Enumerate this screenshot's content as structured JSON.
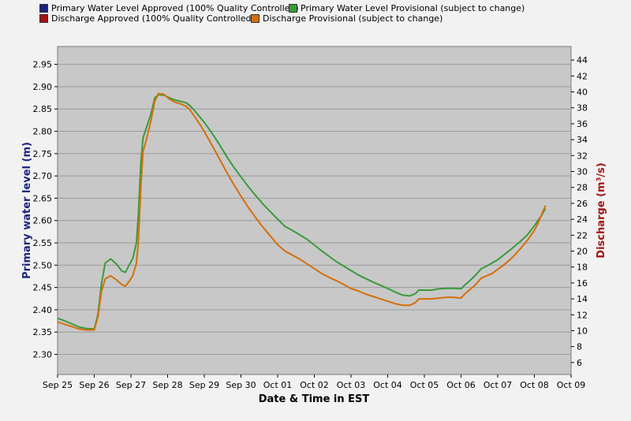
{
  "legend": [
    {
      "label": "Primary Water Level Approved (100% Quality Controlled)",
      "color": "#1a237e"
    },
    {
      "label": "Primary Water Level Provisional (subject to change)",
      "color": "#3a9a3a"
    },
    {
      "label": "Discharge Approved (100% Quality Controlled)",
      "color": "#a31515"
    },
    {
      "label": "Discharge Provisional (subject to change)",
      "color": "#d46f0a"
    }
  ],
  "chart_data": {
    "type": "line",
    "xlabel": "Date & Time in EST",
    "ylabel_left": "Primary water level (m)",
    "ylabel_right": "Discharge (m³/s)",
    "x_categories": [
      "Sep 25",
      "Sep 26",
      "Sep 27",
      "Sep 28",
      "Sep 29",
      "Sep 30",
      "Oct 01",
      "Oct 02",
      "Oct 03",
      "Oct 04",
      "Oct 05",
      "Oct 06",
      "Oct 07",
      "Oct 08",
      "Oct 09"
    ],
    "y_left": {
      "ticks": [
        "2.30",
        "2.35",
        "2.40",
        "2.45",
        "2.50",
        "2.55",
        "2.60",
        "2.65",
        "2.70",
        "2.75",
        "2.80",
        "2.85",
        "2.90",
        "2.95"
      ],
      "range": [
        2.255,
        2.99
      ]
    },
    "y_right": {
      "ticks": [
        "6",
        "8",
        "10",
        "12",
        "14",
        "16",
        "18",
        "20",
        "22",
        "24",
        "26",
        "28",
        "30",
        "32",
        "34",
        "36",
        "38",
        "40",
        "42",
        "44"
      ],
      "range": [
        4.5,
        45.7
      ]
    },
    "grid": true,
    "series": [
      {
        "name": "Primary Water Level Provisional (subject to change)",
        "axis": "left",
        "color": "#3a9a3a",
        "points": [
          [
            0.0,
            2.381
          ],
          [
            0.2,
            2.375
          ],
          [
            0.4,
            2.368
          ],
          [
            0.6,
            2.361
          ],
          [
            0.8,
            2.358
          ],
          [
            1.0,
            2.357
          ],
          [
            1.1,
            2.39
          ],
          [
            1.2,
            2.46
          ],
          [
            1.3,
            2.505
          ],
          [
            1.45,
            2.514
          ],
          [
            1.6,
            2.503
          ],
          [
            1.75,
            2.487
          ],
          [
            1.85,
            2.484
          ],
          [
            1.95,
            2.5
          ],
          [
            2.05,
            2.515
          ],
          [
            2.15,
            2.55
          ],
          [
            2.2,
            2.61
          ],
          [
            2.27,
            2.73
          ],
          [
            2.33,
            2.785
          ],
          [
            2.45,
            2.815
          ],
          [
            2.55,
            2.84
          ],
          [
            2.65,
            2.875
          ],
          [
            2.75,
            2.882
          ],
          [
            2.9,
            2.881
          ],
          [
            3.05,
            2.875
          ],
          [
            3.2,
            2.87
          ],
          [
            3.35,
            2.867
          ],
          [
            3.5,
            2.864
          ],
          [
            3.6,
            2.858
          ],
          [
            3.75,
            2.845
          ],
          [
            3.9,
            2.83
          ],
          [
            4.0,
            2.82
          ],
          [
            4.2,
            2.797
          ],
          [
            4.4,
            2.772
          ],
          [
            4.6,
            2.745
          ],
          [
            4.8,
            2.72
          ],
          [
            5.0,
            2.698
          ],
          [
            5.2,
            2.676
          ],
          [
            5.4,
            2.656
          ],
          [
            5.6,
            2.637
          ],
          [
            5.8,
            2.62
          ],
          [
            6.0,
            2.603
          ],
          [
            6.2,
            2.587
          ],
          [
            6.4,
            2.578
          ],
          [
            6.6,
            2.568
          ],
          [
            6.8,
            2.558
          ],
          [
            7.0,
            2.545
          ],
          [
            7.2,
            2.532
          ],
          [
            7.4,
            2.52
          ],
          [
            7.6,
            2.508
          ],
          [
            7.8,
            2.498
          ],
          [
            8.0,
            2.488
          ],
          [
            8.2,
            2.478
          ],
          [
            8.4,
            2.47
          ],
          [
            8.6,
            2.462
          ],
          [
            8.8,
            2.455
          ],
          [
            9.0,
            2.448
          ],
          [
            9.2,
            2.44
          ],
          [
            9.4,
            2.433
          ],
          [
            9.6,
            2.431
          ],
          [
            9.75,
            2.436
          ],
          [
            9.85,
            2.444
          ],
          [
            10.0,
            2.444
          ],
          [
            10.2,
            2.444
          ],
          [
            10.4,
            2.447
          ],
          [
            10.6,
            2.448
          ],
          [
            10.8,
            2.448
          ],
          [
            11.0,
            2.447
          ],
          [
            11.1,
            2.455
          ],
          [
            11.25,
            2.466
          ],
          [
            11.4,
            2.478
          ],
          [
            11.55,
            2.492
          ],
          [
            11.7,
            2.498
          ],
          [
            11.85,
            2.505
          ],
          [
            12.0,
            2.512
          ],
          [
            12.2,
            2.525
          ],
          [
            12.4,
            2.538
          ],
          [
            12.6,
            2.552
          ],
          [
            12.8,
            2.567
          ],
          [
            13.0,
            2.588
          ],
          [
            13.1,
            2.6
          ],
          [
            13.2,
            2.612
          ],
          [
            13.3,
            2.627
          ]
        ]
      },
      {
        "name": "Discharge Provisional (subject to change)",
        "axis": "right",
        "color": "#d46f0a",
        "points": [
          [
            0.0,
            11.1
          ],
          [
            0.2,
            10.8
          ],
          [
            0.4,
            10.5
          ],
          [
            0.6,
            10.2
          ],
          [
            0.8,
            10.1
          ],
          [
            1.0,
            10.1
          ],
          [
            1.1,
            11.8
          ],
          [
            1.2,
            15.0
          ],
          [
            1.3,
            16.5
          ],
          [
            1.45,
            16.9
          ],
          [
            1.6,
            16.4
          ],
          [
            1.75,
            15.8
          ],
          [
            1.85,
            15.6
          ],
          [
            1.95,
            16.2
          ],
          [
            2.05,
            16.9
          ],
          [
            2.15,
            18.5
          ],
          [
            2.2,
            21.0
          ],
          [
            2.27,
            28.0
          ],
          [
            2.33,
            32.5
          ],
          [
            2.45,
            34.5
          ],
          [
            2.55,
            36.5
          ],
          [
            2.65,
            38.8
          ],
          [
            2.75,
            39.8
          ],
          [
            2.9,
            39.7
          ],
          [
            3.05,
            39.1
          ],
          [
            3.2,
            38.7
          ],
          [
            3.35,
            38.5
          ],
          [
            3.5,
            38.2
          ],
          [
            3.6,
            37.8
          ],
          [
            3.75,
            36.8
          ],
          [
            3.9,
            35.8
          ],
          [
            4.0,
            35.0
          ],
          [
            4.2,
            33.4
          ],
          [
            4.4,
            31.7
          ],
          [
            4.6,
            30.0
          ],
          [
            4.8,
            28.4
          ],
          [
            5.0,
            26.9
          ],
          [
            5.2,
            25.5
          ],
          [
            5.4,
            24.2
          ],
          [
            5.6,
            23.0
          ],
          [
            5.8,
            21.9
          ],
          [
            6.0,
            20.8
          ],
          [
            6.2,
            20.0
          ],
          [
            6.4,
            19.5
          ],
          [
            6.6,
            19.0
          ],
          [
            6.8,
            18.4
          ],
          [
            7.0,
            17.8
          ],
          [
            7.2,
            17.2
          ],
          [
            7.4,
            16.7
          ],
          [
            7.6,
            16.3
          ],
          [
            7.8,
            15.8
          ],
          [
            8.0,
            15.3
          ],
          [
            8.2,
            15.0
          ],
          [
            8.4,
            14.6
          ],
          [
            8.6,
            14.3
          ],
          [
            8.8,
            14.0
          ],
          [
            9.0,
            13.7
          ],
          [
            9.2,
            13.4
          ],
          [
            9.4,
            13.2
          ],
          [
            9.6,
            13.2
          ],
          [
            9.75,
            13.5
          ],
          [
            9.85,
            14.0
          ],
          [
            10.0,
            14.0
          ],
          [
            10.2,
            14.0
          ],
          [
            10.4,
            14.1
          ],
          [
            10.6,
            14.2
          ],
          [
            10.8,
            14.2
          ],
          [
            11.0,
            14.1
          ],
          [
            11.1,
            14.6
          ],
          [
            11.25,
            15.2
          ],
          [
            11.4,
            15.8
          ],
          [
            11.55,
            16.6
          ],
          [
            11.7,
            16.9
          ],
          [
            11.85,
            17.2
          ],
          [
            12.0,
            17.7
          ],
          [
            12.2,
            18.4
          ],
          [
            12.4,
            19.2
          ],
          [
            12.6,
            20.2
          ],
          [
            12.8,
            21.3
          ],
          [
            13.0,
            22.6
          ],
          [
            13.1,
            23.5
          ],
          [
            13.2,
            24.6
          ],
          [
            13.3,
            25.7
          ]
        ]
      }
    ]
  }
}
